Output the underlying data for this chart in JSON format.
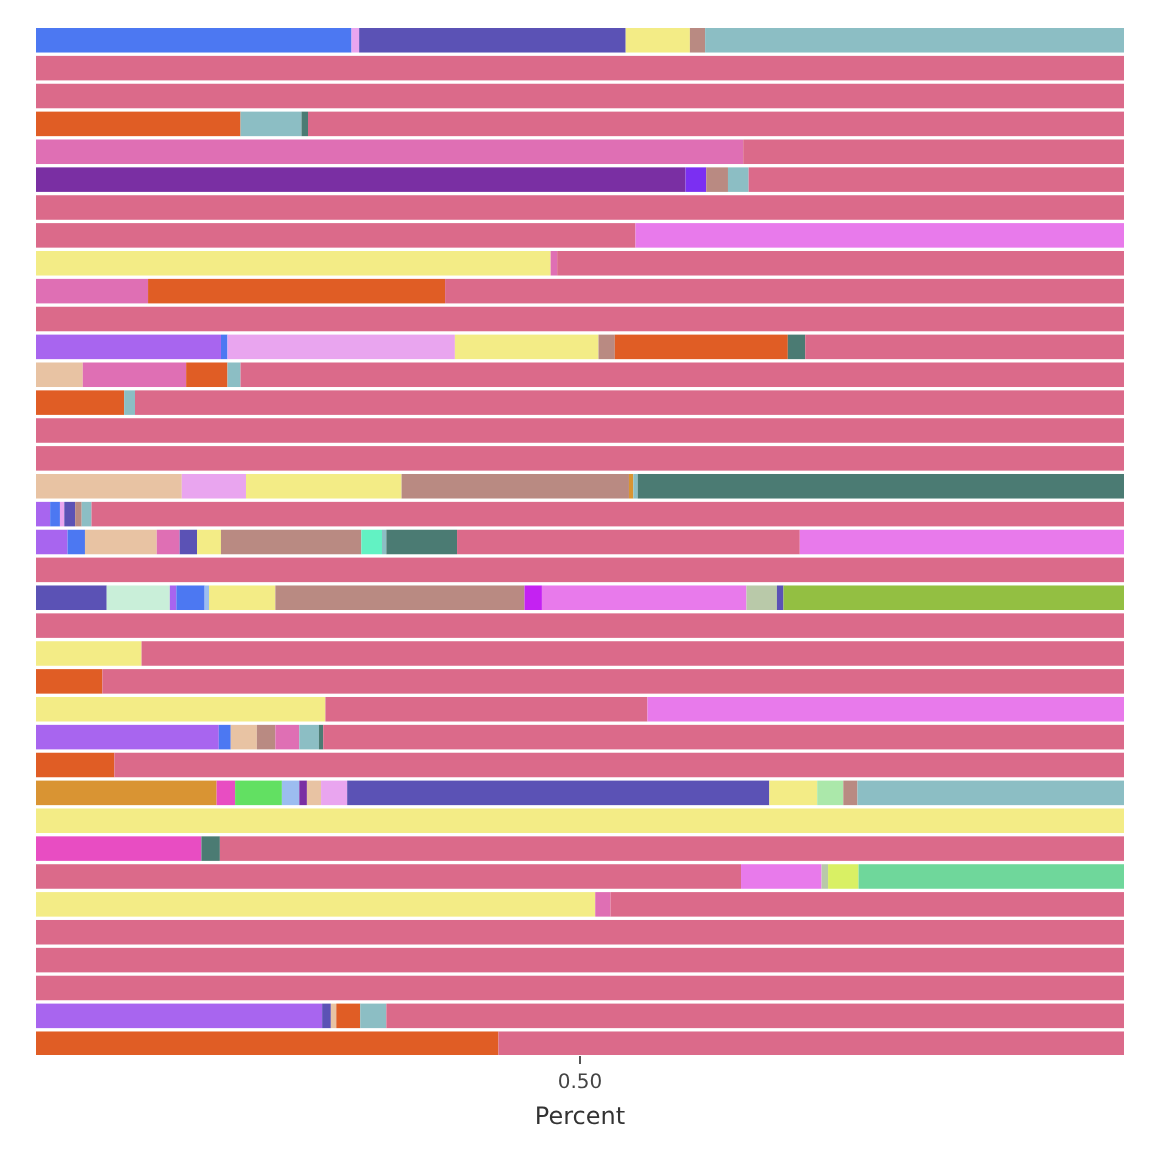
{
  "chart_data": {
    "type": "bar",
    "orientation": "horizontal",
    "stacked": true,
    "xlabel": "Percent",
    "xlim": [
      0,
      1
    ],
    "xticks": [
      {
        "value": 0.5,
        "label": "0.50"
      }
    ],
    "categories": [
      null,
      null,
      null,
      null,
      null,
      null,
      null,
      null,
      null,
      null,
      null,
      null,
      null,
      null,
      null,
      null,
      null,
      null,
      null,
      null,
      null,
      null,
      null,
      null,
      null,
      null,
      null,
      null,
      null,
      null,
      null,
      null,
      null,
      null,
      null,
      null,
      null
    ],
    "series": [
      {
        "values": [
          0.29,
          1,
          1,
          0.188,
          0.65,
          0.597,
          1,
          0.551,
          0.473,
          0.103,
          1,
          0.17,
          0.043,
          0.081,
          1,
          1,
          0.134,
          0.013,
          0.029,
          1,
          0.065,
          1,
          0.097,
          0.061,
          0.266,
          0.168,
          0.072,
          0.166,
          1,
          0.152,
          0.648,
          0.514,
          1,
          1,
          1,
          0.263,
          0.425
        ],
        "colors": [
          "#4c78f2",
          "#db6a8a",
          "#db6a8a",
          "#e05d25",
          "#df6fb4",
          "#7a2fa3",
          "#db6a8a",
          "#db6a8a",
          "#f3ec86",
          "#df6fb4",
          "#db6a8a",
          "#a865ef",
          "#e8c3a3",
          "#e05d25",
          "#db6a8a",
          "#db6a8a",
          "#e8c3a3",
          "#a865ef",
          "#a865ef",
          "#db6a8a",
          "#5b52b5",
          "#db6a8a",
          "#f3ec86",
          "#e05d25",
          "#f3ec86",
          "#a865ef",
          "#e05d25",
          "#d99433",
          "#f3ec86",
          "#e84dc2",
          "#db6a8a",
          "#f3ec86",
          "#db6a8a",
          "#db6a8a",
          "#db6a8a",
          "#a865ef",
          "#e05d25"
        ]
      },
      {
        "values": [
          0.007,
          null,
          null,
          0.056,
          0.35,
          0.019,
          null,
          0.449,
          0.006,
          0.273,
          null,
          0.006,
          0.095,
          0.01,
          null,
          null,
          0.059,
          0.009,
          0.016,
          null,
          0.058,
          null,
          0.903,
          0.939,
          0.296,
          0.011,
          0.928,
          0.017,
          null,
          0.017,
          0.074,
          0.014,
          null,
          null,
          null,
          0.008,
          0.575
        ],
        "colors": [
          "#e9a5ef",
          null,
          null,
          "#8cbec4",
          "#db6a8a",
          "#7b2ff2",
          null,
          "#e87aeb",
          "#df6fb4",
          "#e05d25",
          null,
          "#4c78f2",
          "#df6fb4",
          "#8cbec4",
          null,
          null,
          "#e9a5ef",
          "#4c78f2",
          "#4c78f2",
          null,
          "#c9efd9",
          null,
          "#db6a8a",
          "#db6a8a",
          "#db6a8a",
          "#4c78f2",
          "#db6a8a",
          "#e84dc2",
          null,
          "#4b7b73",
          "#e87aeb",
          "#df6fb4",
          null,
          null,
          null,
          "#5b52b5",
          "#db6a8a"
        ]
      },
      {
        "values": [
          0.245,
          null,
          null,
          0.006,
          null,
          0.02,
          null,
          null,
          0.521,
          0.624,
          null,
          0.209,
          0.038,
          0.909,
          null,
          null,
          0.143,
          0.004,
          0.066,
          null,
          0.006,
          null,
          null,
          null,
          0.438,
          0.024,
          null,
          0.043,
          null,
          0.831,
          0.006,
          0.472,
          null,
          null,
          null,
          0.005,
          null
        ],
        "colors": [
          "#5b52b5",
          null,
          null,
          "#4b7b73",
          null,
          "#b98a82",
          null,
          null,
          "#db6a8a",
          "#db6a8a",
          null,
          "#e9a5ef",
          "#e05d25",
          "#db6a8a",
          null,
          null,
          "#f3ec86",
          "#e9a5ef",
          "#e8c3a3",
          null,
          "#a865ef",
          null,
          null,
          null,
          "#e87aeb",
          "#e8c3a3",
          null,
          "#62e062",
          null,
          "#db6a8a",
          "#b9c9a9",
          "#db6a8a",
          null,
          null,
          null,
          "#e8c3a3",
          null
        ]
      },
      {
        "values": [
          0.059,
          null,
          null,
          0.75,
          null,
          0.019,
          null,
          null,
          null,
          null,
          null,
          0.132,
          0.012,
          null,
          null,
          null,
          0.209,
          0.01,
          0.021,
          null,
          0.026,
          null,
          null,
          null,
          null,
          0.017,
          null,
          0.016,
          null,
          null,
          0.028,
          null,
          null,
          null,
          null,
          0.022,
          null
        ],
        "colors": [
          "#f3ec86",
          null,
          null,
          "#db6a8a",
          null,
          "#8cbec4",
          null,
          null,
          null,
          null,
          null,
          "#f3ec86",
          "#8cbec4",
          null,
          null,
          null,
          "#b98a82",
          "#5b52b5",
          "#df6fb4",
          null,
          "#4c78f2",
          null,
          null,
          null,
          null,
          "#b98a82",
          null,
          "#9cbdf0",
          null,
          null,
          "#d9f064",
          null,
          null,
          null,
          null,
          "#e05d25",
          null
        ]
      },
      {
        "values": [
          0.014,
          null,
          null,
          null,
          null,
          0.345,
          null,
          null,
          null,
          null,
          null,
          0.015,
          0.812,
          null,
          null,
          null,
          0.004,
          0.006,
          0.016,
          null,
          0.004,
          null,
          null,
          null,
          null,
          0.022,
          null,
          0.007,
          null,
          null,
          0.244,
          null,
          null,
          null,
          null,
          0.024,
          null
        ],
        "colors": [
          "#b98a82",
          null,
          null,
          null,
          null,
          "#db6a8a",
          null,
          null,
          null,
          null,
          null,
          "#b98a82",
          "#db6a8a",
          null,
          null,
          null,
          "#d99433",
          "#b98a82",
          "#5b52b5",
          null,
          "#9cbdf0",
          null,
          null,
          null,
          null,
          "#df6fb4",
          null,
          "#7a2fa3",
          null,
          null,
          "#6fd79b",
          null,
          null,
          null,
          null,
          "#8cbec4",
          null
        ]
      },
      {
        "values": [
          0.385,
          null,
          null,
          null,
          null,
          null,
          null,
          null,
          null,
          null,
          null,
          0.159,
          null,
          null,
          null,
          null,
          0.004,
          0.009,
          0.022,
          null,
          0.061,
          null,
          null,
          null,
          null,
          0.018,
          null,
          0.013,
          null,
          null,
          null,
          null,
          null,
          null,
          null,
          0.678,
          null
        ],
        "colors": [
          "#8cbec4",
          null,
          null,
          null,
          null,
          null,
          null,
          null,
          null,
          null,
          null,
          "#e05d25",
          null,
          null,
          null,
          null,
          "#8cbec4",
          "#8cbec4",
          "#f3ec86",
          null,
          "#f3ec86",
          null,
          null,
          null,
          null,
          "#8cbec4",
          null,
          "#e8c3a3",
          null,
          null,
          null,
          null,
          null,
          null,
          null,
          "#db6a8a",
          null
        ]
      },
      {
        "values": [
          null,
          null,
          null,
          null,
          null,
          null,
          null,
          null,
          null,
          null,
          null,
          0.016,
          null,
          null,
          null,
          null,
          0.447,
          0.949,
          0.129,
          null,
          0.229,
          null,
          null,
          null,
          null,
          0.004,
          null,
          0.024,
          null,
          null,
          null,
          null,
          null,
          null,
          null,
          null,
          null
        ],
        "colors": [
          null,
          null,
          null,
          null,
          null,
          null,
          null,
          null,
          null,
          null,
          null,
          "#4b7b73",
          null,
          null,
          null,
          null,
          "#4b7b73",
          "#db6a8a",
          "#b98a82",
          null,
          "#b98a82",
          null,
          null,
          null,
          null,
          "#4b7b73",
          null,
          "#e9a5ef",
          null,
          null,
          null,
          null,
          null,
          null,
          null,
          null,
          null
        ]
      },
      {
        "values": [
          null,
          null,
          null,
          null,
          null,
          null,
          null,
          null,
          null,
          null,
          null,
          0.293,
          null,
          null,
          null,
          null,
          null,
          null,
          0.019,
          null,
          0.016,
          null,
          null,
          null,
          null,
          0.736,
          null,
          0.388,
          null,
          null,
          null,
          null,
          null,
          null,
          null,
          null,
          null
        ],
        "colors": [
          null,
          null,
          null,
          null,
          null,
          null,
          null,
          null,
          null,
          null,
          null,
          "#db6a8a",
          null,
          null,
          null,
          null,
          null,
          null,
          "#62f2c3",
          null,
          "#c422f2",
          null,
          null,
          null,
          null,
          "#db6a8a",
          null,
          "#5b52b5",
          null,
          null,
          null,
          null,
          null,
          null,
          null,
          null,
          null
        ]
      },
      {
        "values": [
          null,
          null,
          null,
          null,
          null,
          null,
          null,
          null,
          null,
          null,
          null,
          null,
          null,
          null,
          null,
          null,
          null,
          null,
          0.004,
          null,
          0.188,
          null,
          null,
          null,
          null,
          null,
          null,
          0.044,
          null,
          null,
          null,
          null,
          null,
          null,
          null,
          null,
          null
        ],
        "colors": [
          null,
          null,
          null,
          null,
          null,
          null,
          null,
          null,
          null,
          null,
          null,
          null,
          null,
          null,
          null,
          null,
          null,
          null,
          "#8cbec4",
          null,
          "#e87aeb",
          null,
          null,
          null,
          null,
          null,
          null,
          "#f3ec86",
          null,
          null,
          null,
          null,
          null,
          null,
          null,
          null,
          null
        ]
      },
      {
        "values": [
          null,
          null,
          null,
          null,
          null,
          null,
          null,
          null,
          null,
          null,
          null,
          null,
          null,
          null,
          null,
          null,
          null,
          null,
          0.065,
          null,
          0.028,
          null,
          null,
          null,
          null,
          null,
          null,
          0.024,
          null,
          null,
          null,
          null,
          null,
          null,
          null,
          null,
          null
        ],
        "colors": [
          null,
          null,
          null,
          null,
          null,
          null,
          null,
          null,
          null,
          null,
          null,
          null,
          null,
          null,
          null,
          null,
          null,
          null,
          "#4b7b73",
          null,
          "#b9c9a9",
          null,
          null,
          null,
          null,
          null,
          null,
          "#abe8aa",
          null,
          null,
          null,
          null,
          null,
          null,
          null,
          null,
          null
        ]
      },
      {
        "values": [
          null,
          null,
          null,
          null,
          null,
          null,
          null,
          null,
          null,
          null,
          null,
          null,
          null,
          null,
          null,
          null,
          null,
          null,
          0.315,
          null,
          0.006,
          null,
          null,
          null,
          null,
          null,
          null,
          0.013,
          null,
          null,
          null,
          null,
          null,
          null,
          null,
          null,
          null
        ],
        "colors": [
          null,
          null,
          null,
          null,
          null,
          null,
          null,
          null,
          null,
          null,
          null,
          null,
          null,
          null,
          null,
          null,
          null,
          null,
          "#db6a8a",
          null,
          "#5b52b5",
          null,
          null,
          null,
          null,
          null,
          null,
          "#b98a82",
          null,
          null,
          null,
          null,
          null,
          null,
          null,
          null,
          null
        ]
      },
      {
        "values": [
          null,
          null,
          null,
          null,
          null,
          null,
          null,
          null,
          null,
          null,
          null,
          null,
          null,
          null,
          null,
          null,
          null,
          null,
          0.298,
          null,
          0.313,
          null,
          null,
          null,
          null,
          null,
          null,
          0.245,
          null,
          null,
          null,
          null,
          null,
          null,
          null,
          null,
          null
        ],
        "colors": [
          null,
          null,
          null,
          null,
          null,
          null,
          null,
          null,
          null,
          null,
          null,
          null,
          null,
          null,
          null,
          null,
          null,
          null,
          "#e87aeb",
          null,
          "#93bf42",
          null,
          null,
          null,
          null,
          null,
          null,
          "#8cbec4",
          null,
          null,
          null,
          null,
          null,
          null,
          null,
          null,
          null
        ]
      }
    ]
  }
}
